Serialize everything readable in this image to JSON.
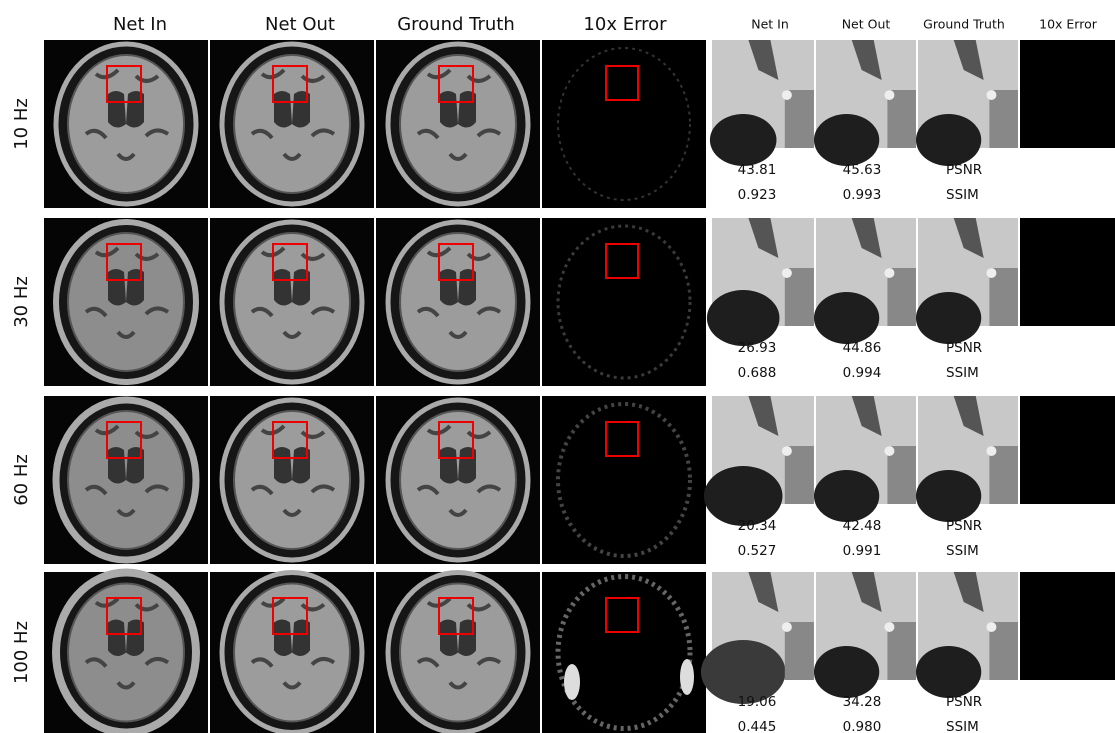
{
  "headers": {
    "left": [
      "Net In",
      "Net Out",
      "Ground Truth",
      "10x Error"
    ],
    "right": [
      "Net In",
      "Net Out",
      "Ground Truth",
      "10x Error"
    ]
  },
  "rows": [
    {
      "label": "10 Hz",
      "metrics": [
        {
          "net_in": "43.81",
          "net_out": "45.63",
          "name": "PSNR"
        },
        {
          "net_in": "0.923",
          "net_out": "0.993",
          "name": "SSIM"
        }
      ]
    },
    {
      "label": "30 Hz",
      "metrics": [
        {
          "net_in": "26.93",
          "net_out": "44.86",
          "name": "PSNR"
        },
        {
          "net_in": "0.688",
          "net_out": "0.994",
          "name": "SSIM"
        }
      ]
    },
    {
      "label": "60 Hz",
      "metrics": [
        {
          "net_in": "20.34",
          "net_out": "42.48",
          "name": "PSNR"
        },
        {
          "net_in": "0.527",
          "net_out": "0.991",
          "name": "SSIM"
        }
      ]
    },
    {
      "label": "100 Hz",
      "metrics": [
        {
          "net_in": "19.06",
          "net_out": "34.28",
          "name": "PSNR"
        },
        {
          "net_in": "0.445",
          "net_out": "0.980",
          "name": "SSIM"
        }
      ]
    }
  ]
}
